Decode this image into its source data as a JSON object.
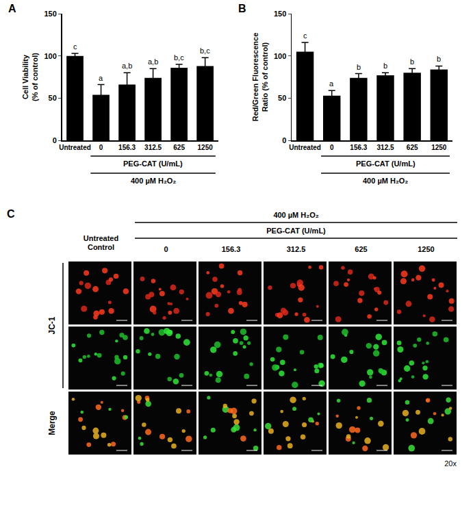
{
  "chart_data": [
    {
      "type": "bar",
      "title": "A",
      "y_label": "Cell Viability\n(% of control)",
      "categories": [
        "Untreated",
        "0",
        "156.3",
        "312.5",
        "625",
        "1250"
      ],
      "values": [
        100,
        54,
        66,
        74,
        86,
        88
      ],
      "error": [
        3,
        12,
        14,
        11,
        4,
        10
      ],
      "significance": [
        "c",
        "a",
        "a,b",
        "a,b",
        "b,c",
        "b,c"
      ],
      "group_labels": [
        "PEG-CAT (U/mL)",
        "400 µM H₂O₂"
      ],
      "color": "#000000",
      "ylim": [
        0,
        150
      ],
      "yticks": [
        0,
        50,
        100,
        150
      ],
      "grid": false
    },
    {
      "type": "bar",
      "title": "B",
      "y_label": "Red/Green Fluorescence\nRatio (% of control)",
      "categories": [
        "Untreated",
        "0",
        "156.3",
        "312.5",
        "625",
        "1250"
      ],
      "values": [
        105,
        53,
        74,
        77,
        80,
        84
      ],
      "error": [
        11,
        6,
        5,
        3,
        5,
        4
      ],
      "significance": [
        "c",
        "a",
        "b",
        "b",
        "b",
        "b"
      ],
      "group_labels": [
        "PEG-CAT (U/mL)",
        "400 µM H₂O₂"
      ],
      "color": "#000000",
      "ylim": [
        0,
        150
      ],
      "yticks": [
        0,
        50,
        100,
        150
      ],
      "grid": false
    }
  ],
  "panel_c": {
    "title": "C",
    "treatment": "400 µM H₂O₂",
    "agent": "PEG-CAT (U/mL)",
    "control_label": "Untreated\nControl",
    "columns": [
      "0",
      "156.3",
      "312.5",
      "625",
      "1250"
    ],
    "row_groups": [
      {
        "label": "JC-1",
        "rows": 2
      },
      {
        "label": "Merge",
        "rows": 1
      }
    ],
    "magnification": "20x"
  }
}
